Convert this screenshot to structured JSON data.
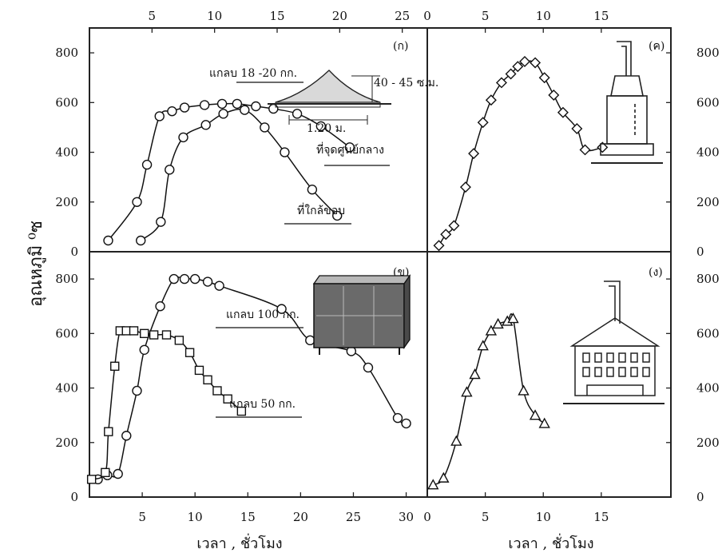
{
  "chart_data": [
    {
      "id": "k",
      "panel_label": "(ก)",
      "type": "line",
      "x_range": [
        0,
        27
      ],
      "y_range": [
        0,
        900
      ],
      "x_ticks": [
        5,
        10,
        15,
        20,
        25
      ],
      "y_ticks": [
        0,
        200,
        400,
        600,
        800
      ],
      "annotations": [
        "แกลบ 18 -20 กก.",
        "40 - 45 ซ.ม.",
        "1.20 ม."
      ],
      "series": [
        {
          "name": "ที่จุดศูนย์กลาง",
          "marker": "circle",
          "x": [
            1.5,
            3.8,
            4.6,
            5.6,
            6.6,
            7.6,
            9.2,
            10.6,
            11.8,
            13.3,
            14.7,
            16.6,
            18.5,
            20.8
          ],
          "y": [
            45,
            200,
            350,
            545,
            565,
            580,
            590,
            595,
            595,
            585,
            575,
            555,
            505,
            420
          ]
        },
        {
          "name": "ที่ใกล้ขอบ",
          "marker": "circle",
          "x": [
            4.1,
            5.7,
            6.4,
            7.5,
            9.3,
            10.7,
            12.4,
            14.0,
            15.6,
            17.8,
            19.8
          ],
          "y": [
            45,
            120,
            330,
            460,
            510,
            555,
            570,
            500,
            400,
            250,
            145
          ]
        }
      ]
    },
    {
      "id": "kh",
      "panel_label": "(ข)",
      "type": "line",
      "x_range": [
        0,
        32
      ],
      "y_range": [
        0,
        900
      ],
      "x_ticks": [
        5,
        10,
        15,
        20,
        25,
        30
      ],
      "y_ticks": [
        0,
        200,
        400,
        600,
        800
      ],
      "series": [
        {
          "name": "แกลบ 100 กก.",
          "marker": "circle",
          "x": [
            0.8,
            1.7,
            2.7,
            3.5,
            4.5,
            5.2,
            6.7,
            8.0,
            9.0,
            10.0,
            11.2,
            12.3,
            18.2,
            20.9,
            24.8,
            26.4,
            29.2,
            30.0
          ],
          "y": [
            65,
            80,
            85,
            225,
            390,
            540,
            700,
            800,
            800,
            800,
            790,
            775,
            690,
            575,
            535,
            475,
            290,
            270
          ]
        },
        {
          "name": "แกลบ 50 กก.",
          "marker": "square",
          "x": [
            0.2,
            1.5,
            1.8,
            2.4,
            2.9,
            3.5,
            4.2,
            5.2,
            6.1,
            7.3,
            8.5,
            9.5,
            10.4,
            11.2,
            12.1,
            13.1,
            14.4
          ],
          "y": [
            65,
            90,
            240,
            480,
            610,
            610,
            610,
            600,
            595,
            595,
            575,
            530,
            465,
            430,
            390,
            360,
            315
          ]
        }
      ]
    },
    {
      "id": "kho",
      "panel_label": "(ค)",
      "type": "line",
      "x_range": [
        0,
        21
      ],
      "y_range": [
        0,
        900
      ],
      "x_ticks": [
        0,
        5,
        10,
        15
      ],
      "y_ticks": [
        0,
        200,
        400,
        600,
        800
      ],
      "series": [
        {
          "name": "",
          "marker": "diamond",
          "x": [
            1.0,
            1.6,
            2.3,
            3.3,
            4.0,
            4.8,
            5.5,
            6.4,
            7.2,
            7.8,
            8.4,
            9.3,
            10.1,
            10.9,
            11.7,
            12.9,
            13.6,
            15.1
          ],
          "y": [
            25,
            70,
            105,
            260,
            395,
            520,
            610,
            680,
            715,
            745,
            765,
            760,
            700,
            630,
            560,
            495,
            410,
            420
          ]
        }
      ]
    },
    {
      "id": "ng",
      "panel_label": "(ง)",
      "type": "line",
      "x_range": [
        0,
        21
      ],
      "y_range": [
        0,
        900
      ],
      "x_ticks": [
        0,
        5,
        10,
        15
      ],
      "y_ticks": [
        0,
        200,
        400,
        600,
        800
      ],
      "series": [
        {
          "name": "",
          "marker": "triangle",
          "x": [
            0.5,
            1.4,
            2.5,
            3.4,
            4.1,
            4.8,
            5.5,
            6.1,
            6.9,
            7.4,
            8.3,
            9.3,
            10.1
          ],
          "y": [
            45,
            70,
            205,
            385,
            450,
            555,
            610,
            635,
            645,
            655,
            390,
            300,
            270
          ]
        }
      ]
    }
  ],
  "ylabel": "อุณหภูมิ ⁰ซ",
  "xlabel": "เวลา , ชั่วโมง"
}
